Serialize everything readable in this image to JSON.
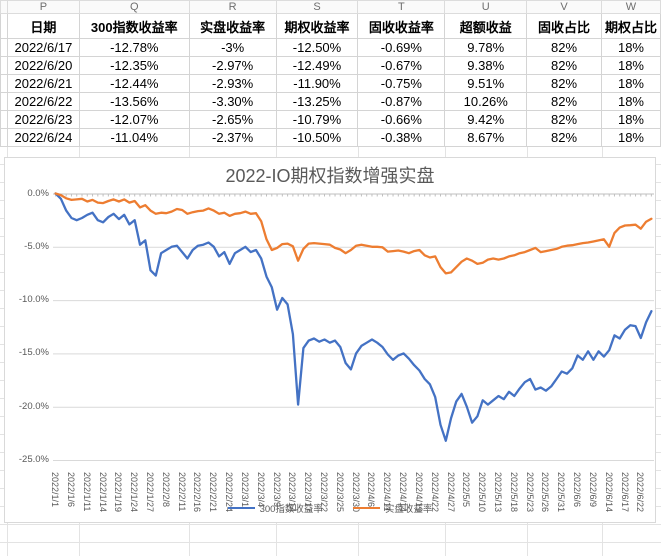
{
  "sheet": {
    "col_letters": [
      "P",
      "Q",
      "R",
      "S",
      "T",
      "U",
      "V",
      "W"
    ],
    "table": {
      "headers": [
        "日期",
        "300指数收益率",
        "实盘收益率",
        "期权收益率",
        "固收收益率",
        "超额收益",
        "固收占比",
        "期权占比"
      ],
      "rows": [
        [
          "2022/6/17",
          "-12.78%",
          "-3%",
          "-12.50%",
          "-0.69%",
          "9.78%",
          "82%",
          "18%"
        ],
        [
          "2022/6/20",
          "-12.35%",
          "-2.97%",
          "-12.49%",
          "-0.67%",
          "9.38%",
          "82%",
          "18%"
        ],
        [
          "2022/6/21",
          "-12.44%",
          "-2.93%",
          "-11.90%",
          "-0.75%",
          "9.51%",
          "82%",
          "18%"
        ],
        [
          "2022/6/22",
          "-13.56%",
          "-3.30%",
          "-13.25%",
          "-0.87%",
          "10.26%",
          "82%",
          "18%"
        ],
        [
          "2022/6/23",
          "-12.07%",
          "-2.65%",
          "-10.79%",
          "-0.66%",
          "9.42%",
          "82%",
          "18%"
        ],
        [
          "2022/6/24",
          "-11.04%",
          "-2.37%",
          "-10.50%",
          "-0.38%",
          "8.67%",
          "82%",
          "18%"
        ]
      ]
    }
  },
  "chart_data": {
    "type": "line",
    "title": "2022-IO期权指数增强实盘",
    "ylim": [
      -25,
      0
    ],
    "grid": true,
    "legend_position": "bottom",
    "y_tick_labels": [
      "0.0%",
      "-5.0%",
      "-10.0%",
      "-15.0%",
      "-20.0%",
      "-25.0%"
    ],
    "x_tick_every": 3,
    "x_tick_labels": [
      "2022/1/1",
      "2022/1/6",
      "2022/1/11",
      "2022/1/14",
      "2022/1/19",
      "2022/1/24",
      "2022/1/27",
      "2022/2/8",
      "2022/2/11",
      "2022/2/16",
      "2022/2/21",
      "2022/2/24",
      "2022/3/1",
      "2022/3/4",
      "2022/3/9",
      "2022/3/14",
      "2022/3/17",
      "2022/3/22",
      "2022/3/25",
      "2022/3/30",
      "2022/4/6",
      "2022/4/11",
      "2022/4/14",
      "2022/4/19",
      "2022/4/22",
      "2022/4/27",
      "2022/5/5",
      "2022/5/10",
      "2022/5/13",
      "2022/5/18",
      "2022/5/23",
      "2022/5/26",
      "2022/5/31",
      "2022/6/6",
      "2022/6/9",
      "2022/6/14",
      "2022/6/17",
      "2022/6/22"
    ],
    "x": [
      "2022/1/1",
      "2022/1/4",
      "2022/1/5",
      "2022/1/6",
      "2022/1/7",
      "2022/1/10",
      "2022/1/11",
      "2022/1/12",
      "2022/1/13",
      "2022/1/14",
      "2022/1/17",
      "2022/1/18",
      "2022/1/19",
      "2022/1/20",
      "2022/1/21",
      "2022/1/24",
      "2022/1/25",
      "2022/1/26",
      "2022/1/27",
      "2022/1/28",
      "2022/2/7",
      "2022/2/8",
      "2022/2/9",
      "2022/2/10",
      "2022/2/11",
      "2022/2/14",
      "2022/2/15",
      "2022/2/16",
      "2022/2/17",
      "2022/2/18",
      "2022/2/21",
      "2022/2/22",
      "2022/2/23",
      "2022/2/24",
      "2022/2/25",
      "2022/2/28",
      "2022/3/1",
      "2022/3/2",
      "2022/3/3",
      "2022/3/4",
      "2022/3/7",
      "2022/3/8",
      "2022/3/9",
      "2022/3/10",
      "2022/3/11",
      "2022/3/14",
      "2022/3/15",
      "2022/3/16",
      "2022/3/17",
      "2022/3/18",
      "2022/3/21",
      "2022/3/22",
      "2022/3/23",
      "2022/3/24",
      "2022/3/25",
      "2022/3/28",
      "2022/3/29",
      "2022/3/30",
      "2022/3/31",
      "2022/4/1",
      "2022/4/6",
      "2022/4/7",
      "2022/4/8",
      "2022/4/11",
      "2022/4/12",
      "2022/4/13",
      "2022/4/14",
      "2022/4/15",
      "2022/4/18",
      "2022/4/19",
      "2022/4/20",
      "2022/4/21",
      "2022/4/22",
      "2022/4/25",
      "2022/4/26",
      "2022/4/27",
      "2022/4/28",
      "2022/4/29",
      "2022/5/5",
      "2022/5/6",
      "2022/5/9",
      "2022/5/10",
      "2022/5/11",
      "2022/5/12",
      "2022/5/13",
      "2022/5/16",
      "2022/5/17",
      "2022/5/18",
      "2022/5/19",
      "2022/5/20",
      "2022/5/23",
      "2022/5/24",
      "2022/5/25",
      "2022/5/26",
      "2022/5/27",
      "2022/5/30",
      "2022/5/31",
      "2022/6/1",
      "2022/6/2",
      "2022/6/6",
      "2022/6/7",
      "2022/6/8",
      "2022/6/9",
      "2022/6/10",
      "2022/6/13",
      "2022/6/14",
      "2022/6/15",
      "2022/6/16",
      "2022/6/17",
      "2022/6/20",
      "2022/6/21",
      "2022/6/22",
      "2022/6/23",
      "2022/6/24"
    ],
    "series": [
      {
        "name": "300指数收益率",
        "color": "#4472C4",
        "values": [
          0.0,
          -0.5,
          -1.6,
          -2.3,
          -2.5,
          -2.3,
          -2.0,
          -1.8,
          -2.5,
          -2.7,
          -2.2,
          -1.9,
          -2.4,
          -2.0,
          -2.9,
          -2.5,
          -4.8,
          -4.4,
          -7.2,
          -7.7,
          -5.6,
          -5.3,
          -5.0,
          -4.9,
          -5.5,
          -6.1,
          -5.3,
          -4.9,
          -4.8,
          -4.6,
          -5.0,
          -5.9,
          -5.5,
          -6.6,
          -5.6,
          -5.3,
          -5.0,
          -5.5,
          -5.3,
          -6.1,
          -7.8,
          -8.8,
          -10.9,
          -9.8,
          -10.4,
          -13.2,
          -19.8,
          -14.5,
          -13.8,
          -13.6,
          -13.9,
          -13.7,
          -14.0,
          -13.8,
          -14.4,
          -15.9,
          -16.5,
          -15.0,
          -14.3,
          -14.0,
          -13.7,
          -14.0,
          -14.4,
          -15.1,
          -15.6,
          -15.2,
          -15.0,
          -15.5,
          -16.1,
          -16.6,
          -17.4,
          -17.9,
          -19.1,
          -21.7,
          -23.2,
          -21.1,
          -19.5,
          -18.8,
          -20.0,
          -21.5,
          -20.9,
          -19.4,
          -19.8,
          -19.4,
          -19.0,
          -19.3,
          -18.6,
          -19.0,
          -18.3,
          -17.7,
          -17.4,
          -18.4,
          -18.2,
          -18.5,
          -18.1,
          -17.4,
          -16.7,
          -16.9,
          -16.4,
          -15.2,
          -15.6,
          -14.8,
          -15.6,
          -14.8,
          -15.3,
          -14.7,
          -13.3,
          -13.6,
          -12.78,
          -12.35,
          -12.44,
          -13.56,
          -12.07,
          -11.04
        ]
      },
      {
        "name": "实盘收益率",
        "color": "#ED7D31",
        "values": [
          0.0,
          -0.15,
          -0.45,
          -0.6,
          -0.55,
          -0.5,
          -0.75,
          -0.6,
          -0.85,
          -0.9,
          -0.7,
          -0.55,
          -0.75,
          -0.55,
          -0.85,
          -0.7,
          -1.3,
          -1.1,
          -1.6,
          -1.9,
          -1.8,
          -1.85,
          -1.7,
          -1.45,
          -1.55,
          -1.9,
          -1.75,
          -1.65,
          -1.6,
          -1.4,
          -1.6,
          -1.9,
          -1.8,
          -2.1,
          -1.9,
          -1.85,
          -1.7,
          -1.9,
          -1.85,
          -2.6,
          -4.3,
          -5.3,
          -5.1,
          -4.75,
          -4.7,
          -4.95,
          -6.3,
          -5.2,
          -4.7,
          -4.65,
          -4.7,
          -4.75,
          -4.8,
          -5.1,
          -5.25,
          -5.6,
          -5.3,
          -4.9,
          -4.8,
          -4.9,
          -5.0,
          -5.0,
          -5.05,
          -5.45,
          -5.4,
          -5.35,
          -5.45,
          -5.6,
          -5.4,
          -5.3,
          -5.8,
          -6.0,
          -5.9,
          -6.9,
          -7.5,
          -7.4,
          -6.9,
          -6.4,
          -6.1,
          -6.3,
          -6.6,
          -6.5,
          -6.2,
          -6.1,
          -6.2,
          -6.1,
          -5.9,
          -5.8,
          -5.6,
          -5.5,
          -5.3,
          -5.1,
          -5.5,
          -5.4,
          -5.3,
          -5.2,
          -5.0,
          -4.9,
          -4.85,
          -4.75,
          -4.65,
          -4.6,
          -4.5,
          -4.4,
          -4.3,
          -5.0,
          -3.7,
          -3.2,
          -3.0,
          -2.97,
          -2.93,
          -3.3,
          -2.65,
          -2.37
        ]
      }
    ]
  },
  "colors": {
    "series1": "#4472C4",
    "series2": "#ED7D31",
    "gridline": "#D9D9D9",
    "axis": "#BFBFBF",
    "chart_text": "#595959"
  }
}
